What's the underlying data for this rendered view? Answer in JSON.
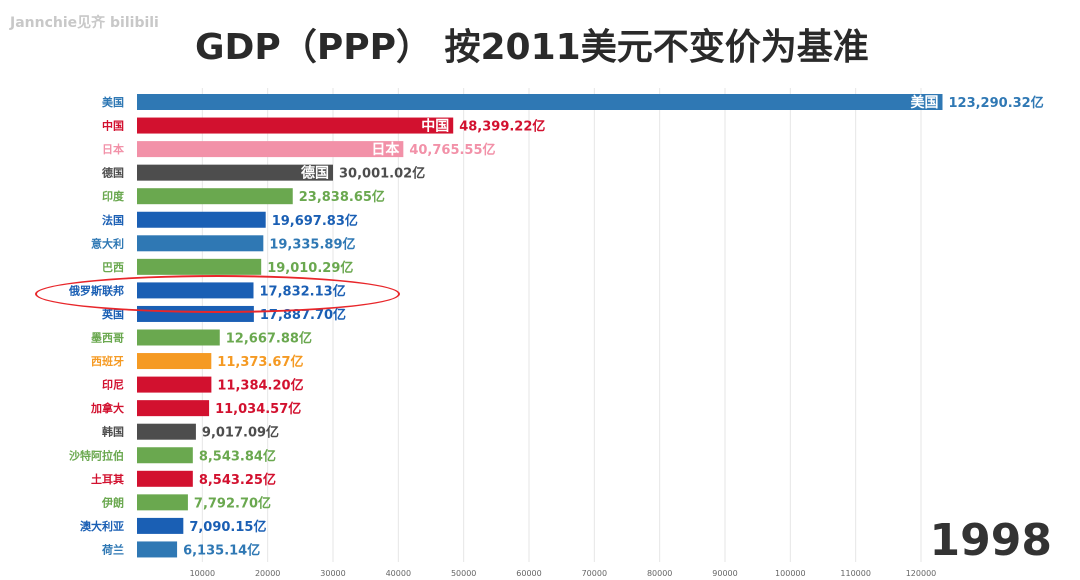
{
  "watermark": "Jannchie见齐 bilibili",
  "chart_data": {
    "type": "bar",
    "orientation": "horizontal",
    "title": "GDP（PPP） 按2011美元不变价为基准",
    "year": "1998",
    "unit_suffix": "亿",
    "xlim": [
      0,
      125000
    ],
    "x_ticks": [
      10000,
      20000,
      30000,
      40000,
      50000,
      60000,
      70000,
      80000,
      90000,
      100000,
      110000,
      120000
    ],
    "categories": [
      "美国",
      "中国",
      "日本",
      "德国",
      "印度",
      "法国",
      "意大利",
      "巴西",
      "俄罗斯联邦",
      "英国",
      "墨西哥",
      "西班牙",
      "印尼",
      "加拿大",
      "韩国",
      "沙特阿拉伯",
      "土耳其",
      "伊朗",
      "澳大利亚",
      "荷兰"
    ],
    "values": [
      123290.32,
      48399.22,
      40765.55,
      30001.02,
      23838.65,
      19697.83,
      19335.89,
      19010.29,
      17832.13,
      17887.7,
      12667.88,
      11373.67,
      11384.2,
      11034.57,
      9017.09,
      8543.84,
      8543.25,
      7792.7,
      7090.15,
      6135.14
    ],
    "value_labels": [
      "123,290.32亿",
      "48,399.22亿",
      "40,765.55亿",
      "30,001.02亿",
      "23,838.65亿",
      "19,697.83亿",
      "19,335.89亿",
      "19,010.29亿",
      "17,832.13亿",
      "17,887.70亿",
      "12,667.88亿",
      "11,373.67亿",
      "11,384.20亿",
      "11,034.57亿",
      "9,017.09亿",
      "8,543.84亿",
      "8,543.25亿",
      "7,792.70亿",
      "7,090.15亿",
      "6,135.14亿"
    ],
    "colors": [
      "#2f78b4",
      "#d2112f",
      "#f291a8",
      "#4d4d4d",
      "#6aa84f",
      "#1a5fb4",
      "#2f78b4",
      "#6aa84f",
      "#1a5fb4",
      "#1a5fb4",
      "#6aa84f",
      "#f59a23",
      "#d2112f",
      "#d2112f",
      "#4d4d4d",
      "#6aa84f",
      "#d2112f",
      "#6aa84f",
      "#1a5fb4",
      "#2f78b4"
    ],
    "inside_labels": [
      "美国",
      "中国",
      "日本",
      "德国"
    ],
    "highlighted": "俄罗斯联邦"
  }
}
